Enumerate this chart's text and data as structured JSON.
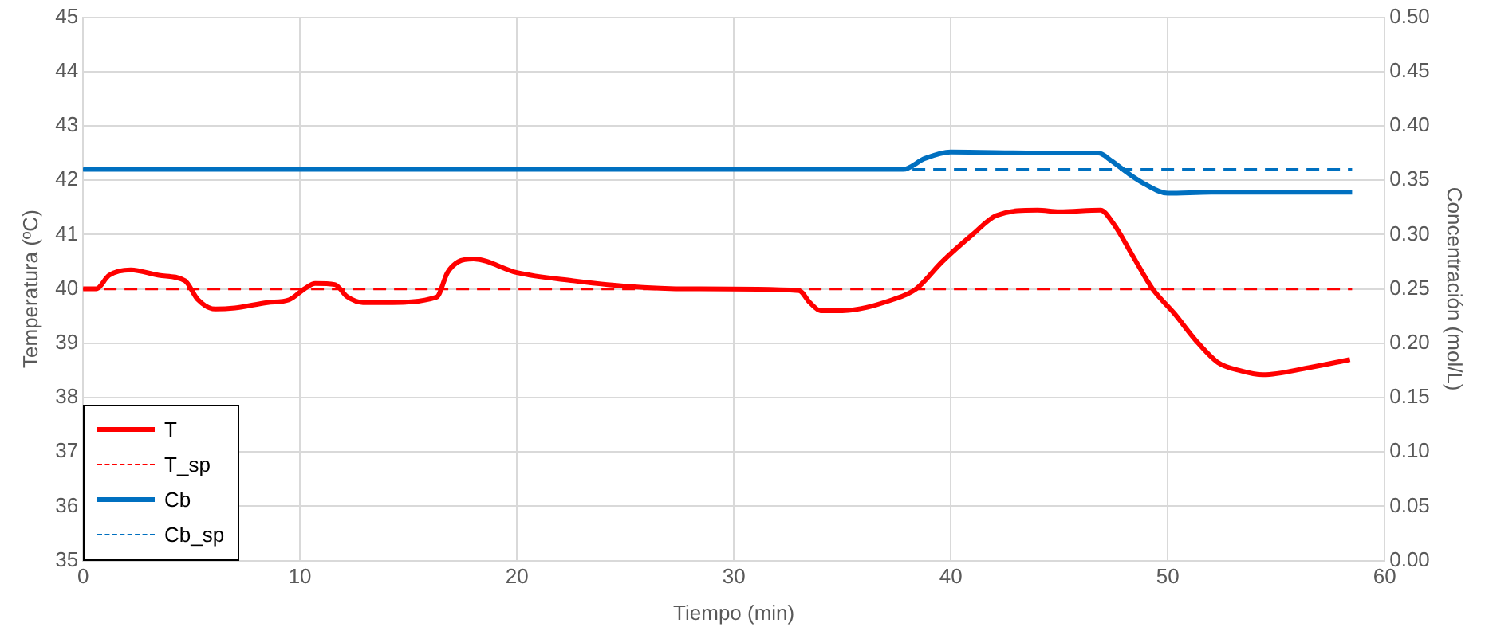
{
  "chart_data": {
    "type": "line",
    "xlabel": "Tiempo (min)",
    "ylabel": "Temperatura (ºC)",
    "y2label": "Concentración (mol/L)",
    "xlim": [
      0,
      60
    ],
    "xticks": [
      0,
      10,
      20,
      30,
      40,
      50,
      60
    ],
    "ylim": [
      35,
      45
    ],
    "yticks": [
      35,
      36,
      37,
      38,
      39,
      40,
      41,
      42,
      43,
      44,
      45
    ],
    "y2lim": [
      0,
      0.5
    ],
    "y2ticks": [
      {
        "value": 0,
        "label": "0.00"
      },
      {
        "value": 0.05,
        "label": "0.05"
      },
      {
        "value": 0.1,
        "label": "0.10"
      },
      {
        "value": 0.15,
        "label": "0.15"
      },
      {
        "value": 0.2,
        "label": "0.20"
      },
      {
        "value": 0.25,
        "label": "0.25"
      },
      {
        "value": 0.3,
        "label": "0.30"
      },
      {
        "value": 0.35,
        "label": "0.35"
      },
      {
        "value": 0.4,
        "label": "0.40"
      },
      {
        "value": 0.45,
        "label": "0.45"
      },
      {
        "value": 0.5,
        "label": "0.50"
      }
    ],
    "grid": true,
    "legend": "bottom left",
    "marker": "none",
    "series": [
      {
        "name": "T",
        "color": "#ff0000",
        "line_style": "solid",
        "x": [
          0,
          0.6,
          1.2,
          2.2,
          3.5,
          4.7,
          5.3,
          6.1,
          7,
          8.5,
          9.5,
          10.2,
          10.7,
          11.6,
          12.2,
          12.9,
          14,
          16.3,
          16.8,
          17.3,
          18,
          20,
          22.6,
          25,
          28,
          33,
          33.5,
          34,
          35,
          37.3,
          38.4,
          39.6,
          41,
          42.1,
          44,
          45,
          46.9,
          47.5,
          48.4,
          49.3,
          50.3,
          51.3,
          52.3,
          53.3,
          54.4,
          56.5,
          58.4
        ],
        "values": [
          40,
          40,
          40.25,
          40.35,
          40.25,
          40.15,
          39.8,
          39.63,
          39.65,
          39.75,
          39.8,
          40.0,
          40.1,
          40.08,
          39.85,
          39.75,
          39.75,
          39.85,
          40.3,
          40.5,
          40.55,
          40.3,
          40.15,
          40.05,
          40.0,
          39.97,
          39.75,
          39.6,
          39.6,
          39.8,
          40.0,
          40.5,
          41.0,
          41.35,
          41.45,
          41.42,
          41.45,
          41.2,
          40.6,
          40.0,
          39.55,
          39.05,
          38.65,
          38.5,
          38.42,
          38.55,
          38.7
        ]
      },
      {
        "name": "T_sp",
        "color": "#ff0000",
        "line_style": "dashed",
        "x": [
          0,
          58.5
        ],
        "values": [
          40,
          40
        ]
      },
      {
        "name": "Cb",
        "color": "#0070c0",
        "line_style": "solid",
        "axis": "y2",
        "x": [
          0,
          10,
          20,
          30,
          37.8,
          38.8,
          40,
          44,
          46.8,
          47.4,
          48.2,
          48.9,
          50,
          52,
          58.5
        ],
        "values": [
          0.36,
          0.36,
          0.36,
          0.36,
          0.36,
          0.37,
          0.376,
          0.375,
          0.375,
          0.368,
          0.356,
          0.347,
          0.338,
          0.339,
          0.339
        ]
      },
      {
        "name": "Cb_sp",
        "color": "#0070c0",
        "line_style": "dashed",
        "axis": "y2",
        "x": [
          0,
          58.5
        ],
        "values": [
          0.36,
          0.36
        ]
      }
    ]
  }
}
